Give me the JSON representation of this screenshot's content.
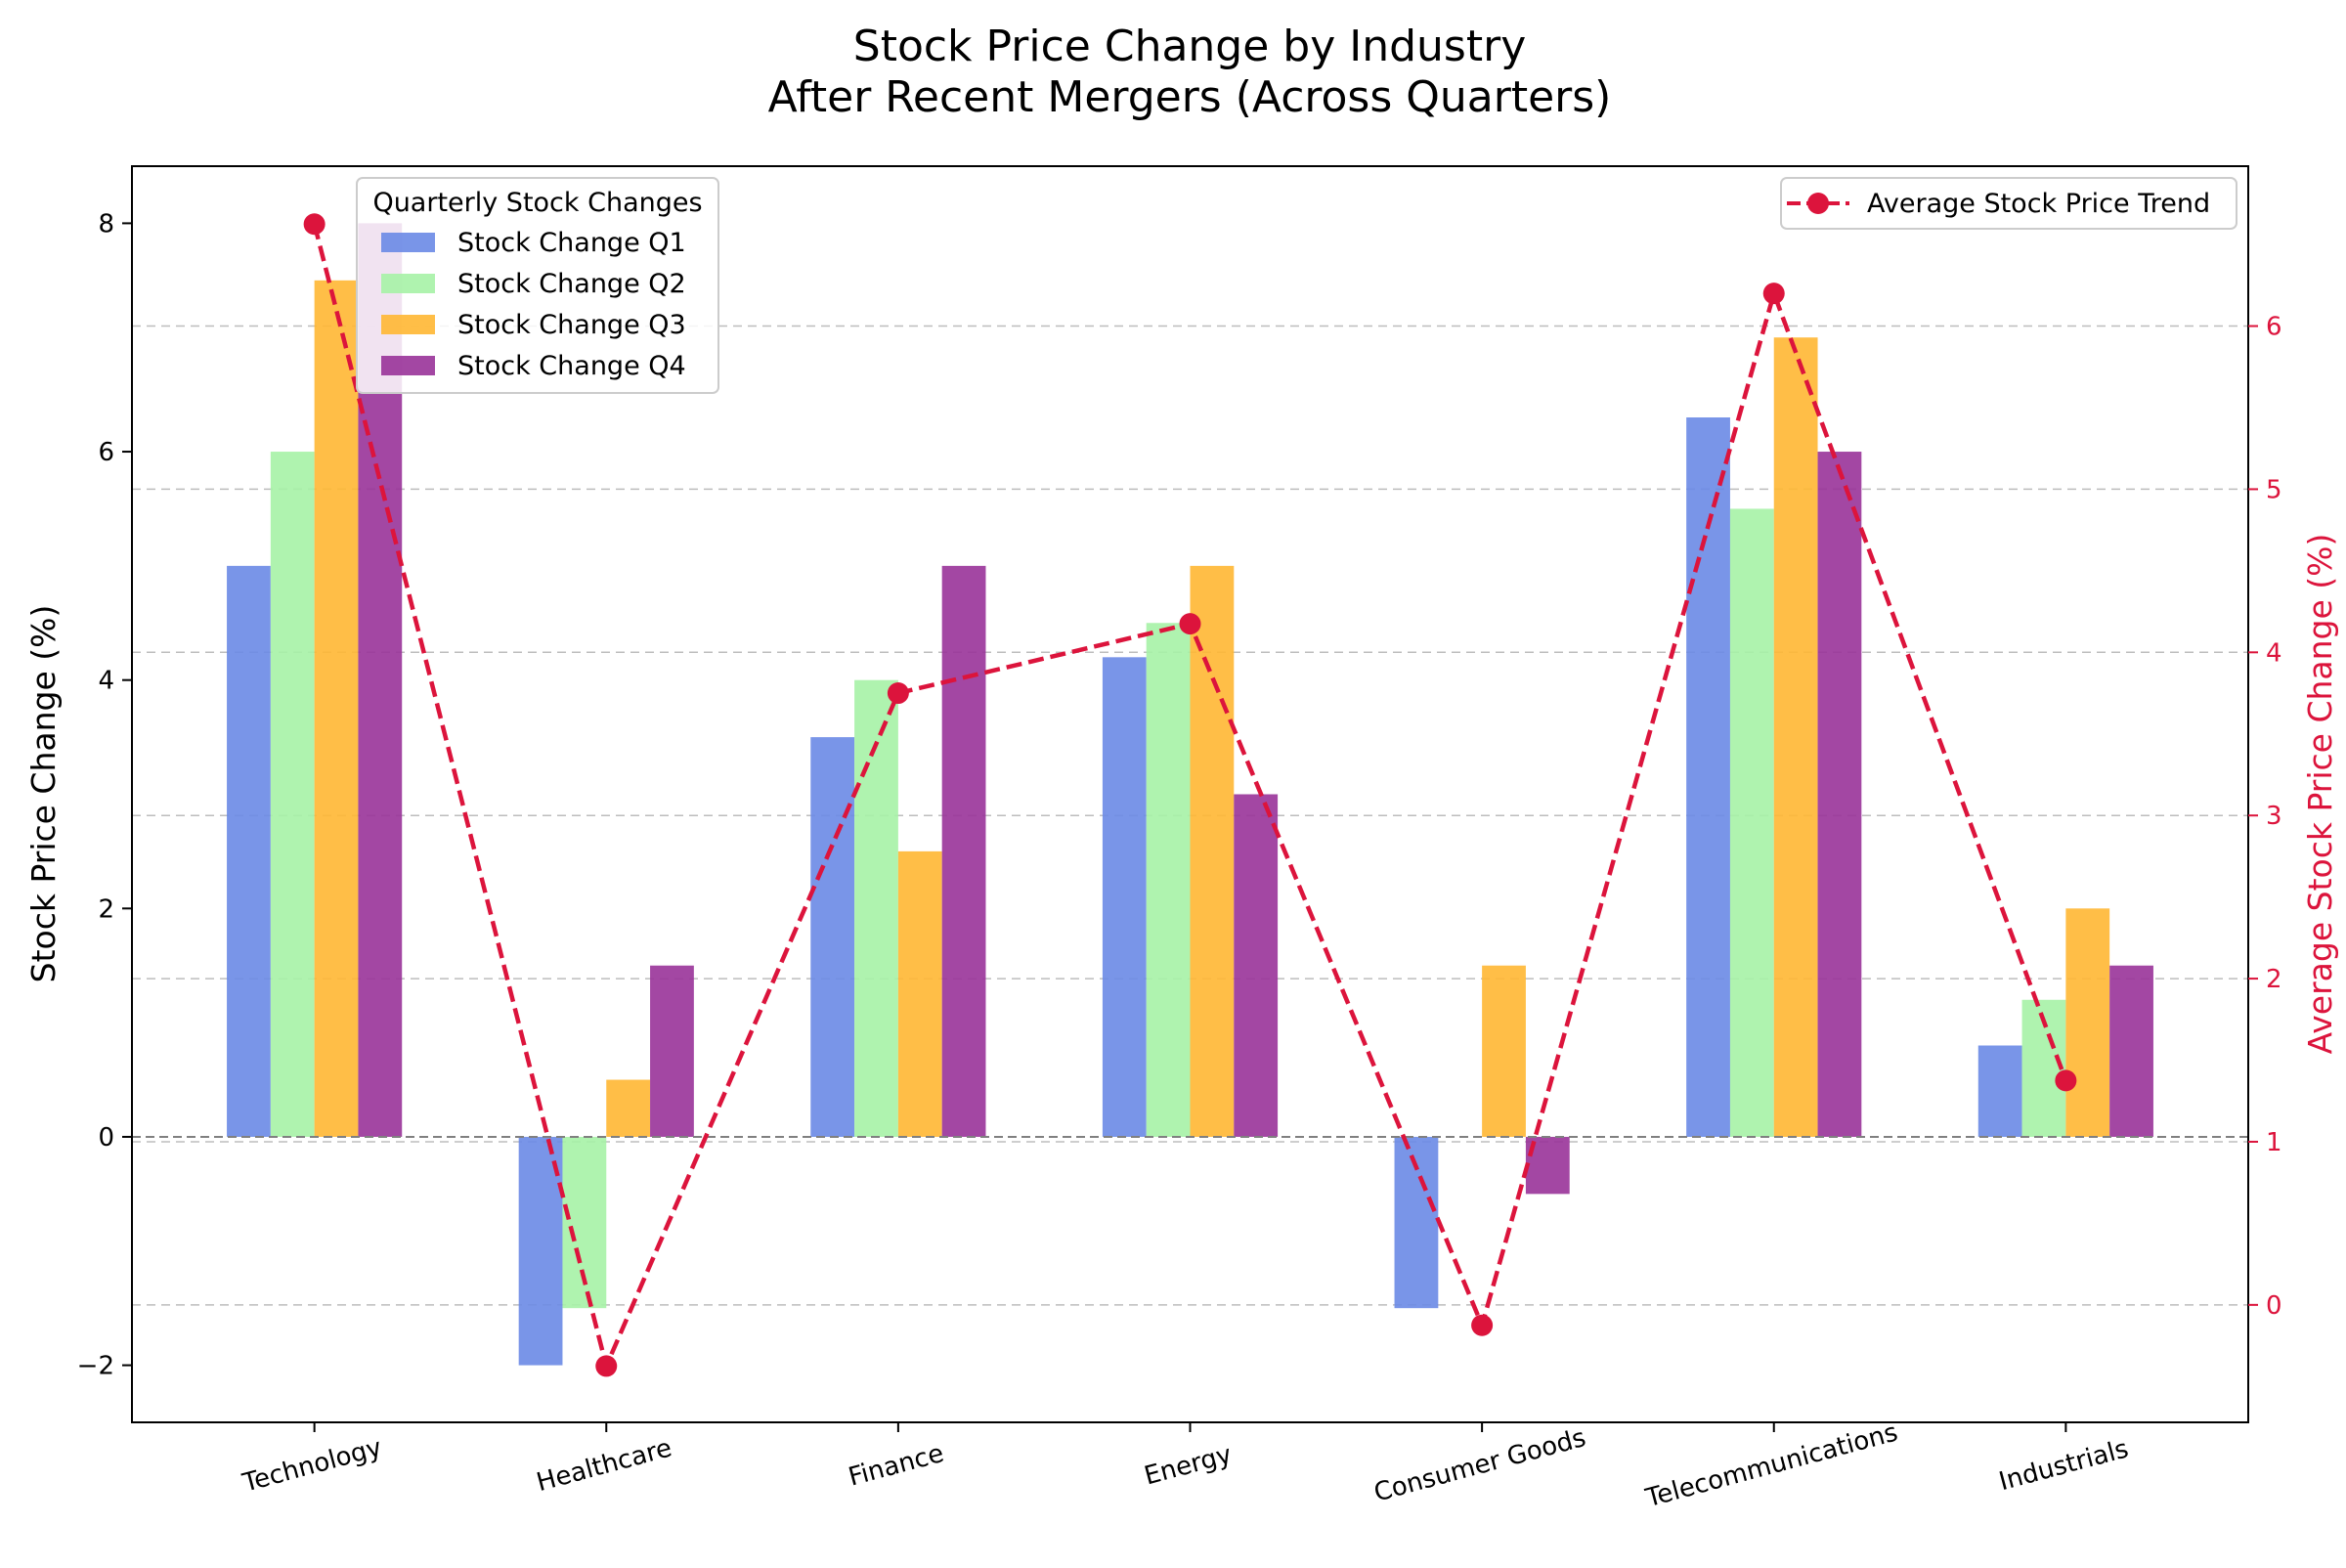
{
  "chart_data": {
    "type": "bar",
    "title_line1": "Stock Price Change by Industry",
    "title_line2": "After Recent Mergers (Across Quarters)",
    "categories": [
      "Technology",
      "Healthcare",
      "Finance",
      "Energy",
      "Consumer Goods",
      "Telecommunications",
      "Industrials"
    ],
    "ylabel": "Stock Price Change (%)",
    "ylabel_right": "Average Stock Price Change (%)",
    "ylim": [
      -2.5,
      8.5
    ],
    "yticks": [
      -2,
      0,
      2,
      4,
      6,
      8
    ],
    "ylim_right": [
      -0.72,
      6.98
    ],
    "yticks_right": [
      0,
      1,
      2,
      3,
      4,
      5,
      6
    ],
    "grid": "horizontal dashed (right axis)",
    "legend_bars_title": "Quarterly Stock Changes",
    "legend_bars_position": "upper-left",
    "legend_line_position": "upper-right",
    "series": [
      {
        "name": "Stock Change Q1",
        "color": "#6a8ae6",
        "values": [
          5.0,
          -2.0,
          3.5,
          4.2,
          -1.5,
          6.3,
          0.8
        ]
      },
      {
        "name": "Stock Change Q2",
        "color": "#a6f2a6",
        "values": [
          6.0,
          -1.5,
          4.0,
          4.5,
          0.0,
          5.5,
          1.2
        ]
      },
      {
        "name": "Stock Change Q3",
        "color": "#ffb733",
        "values": [
          7.5,
          0.5,
          2.5,
          5.0,
          1.5,
          7.0,
          2.0
        ]
      },
      {
        "name": "Stock Change Q4",
        "color": "#993399",
        "values": [
          8.0,
          1.5,
          5.0,
          3.0,
          -0.5,
          6.0,
          1.5
        ]
      }
    ],
    "line": {
      "name": "Average Stock Price Trend",
      "color": "#dc143c",
      "values": [
        6.625,
        -0.375,
        3.75,
        4.175,
        -0.125,
        6.2,
        1.375
      ]
    }
  }
}
